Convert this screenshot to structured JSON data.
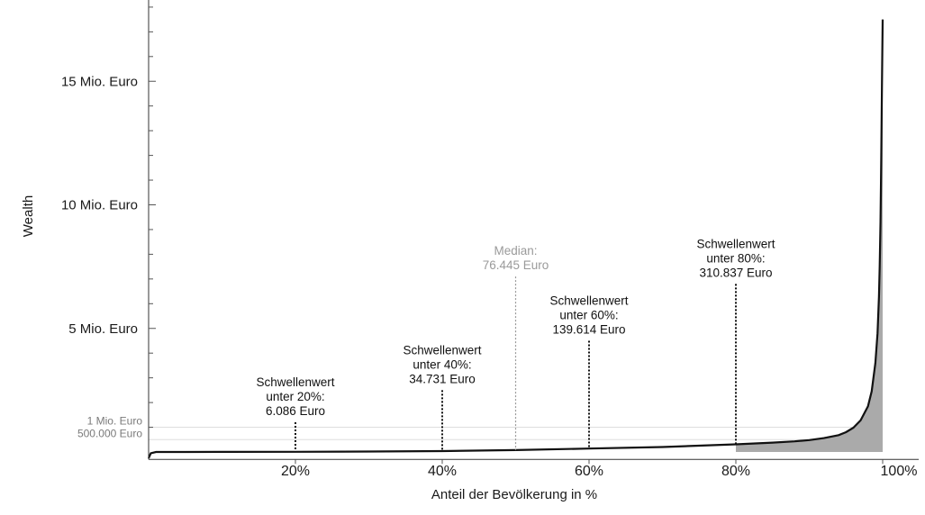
{
  "chart_data": {
    "type": "area",
    "xlabel": "Anteil der Bevölkerung in %",
    "ylabel": "Wealth",
    "xlim": [
      0,
      100
    ],
    "ylim": [
      -0.3,
      18.5
    ],
    "y_unit": "Mio. Euro",
    "x_ticks": [
      {
        "value": 20,
        "label": "20%"
      },
      {
        "value": 40,
        "label": "40%"
      },
      {
        "value": 60,
        "label": "60%"
      },
      {
        "value": 80,
        "label": "80%"
      },
      {
        "value": 100,
        "label": "100%"
      }
    ],
    "y_ticks_major": [
      {
        "value": 5,
        "label": "5 Mio. Euro"
      },
      {
        "value": 10,
        "label": "10 Mio. Euro"
      },
      {
        "value": 15,
        "label": "15 Mio. Euro"
      }
    ],
    "y_ticks_minor": [
      {
        "value": 0.5,
        "label": "500.000 Euro"
      },
      {
        "value": 1,
        "label": "1 Mio. Euro"
      }
    ],
    "series": [
      {
        "x": [
          0,
          0.3,
          1,
          5,
          10,
          20,
          30,
          40,
          50,
          60,
          70,
          80,
          85,
          88,
          90,
          92,
          94,
          95,
          96,
          97,
          98,
          98.5,
          99,
          99.3,
          99.5,
          99.6,
          99.7,
          99.8,
          99.9,
          100
        ],
        "y": [
          -0.25,
          -0.05,
          0.0,
          0.0,
          0.002,
          0.006,
          0.018,
          0.035,
          0.076,
          0.14,
          0.2,
          0.31,
          0.38,
          0.43,
          0.48,
          0.56,
          0.68,
          0.8,
          0.98,
          1.28,
          1.85,
          2.45,
          3.6,
          4.8,
          6.3,
          7.5,
          9.3,
          11.8,
          14.8,
          17.5
        ]
      }
    ],
    "annotations": [
      {
        "x": 20,
        "value": 0.006086,
        "top": 1.2,
        "lines": [
          "Schwellenwert",
          "unter 20%:",
          "6.086 Euro"
        ],
        "style": "dark"
      },
      {
        "x": 40,
        "value": 0.034731,
        "top": 2.5,
        "lines": [
          "Schwellenwert",
          "unter 40%:",
          "34.731 Euro"
        ],
        "style": "dark"
      },
      {
        "x": 50,
        "value": 0.076445,
        "top": 7.1,
        "lines": [
          "Median:",
          "76.445 Euro"
        ],
        "style": "grey"
      },
      {
        "x": 60,
        "value": 0.139614,
        "top": 4.5,
        "lines": [
          "Schwellenwert",
          "unter 60%:",
          "139.614 Euro"
        ],
        "style": "dark"
      },
      {
        "x": 80,
        "value": 0.310837,
        "top": 6.8,
        "lines": [
          "Schwellenwert",
          "unter 80%:",
          "310.837 Euro"
        ],
        "style": "dark"
      }
    ],
    "grid": false,
    "legend": "none",
    "colors": {
      "line": "#111111",
      "fill": "#aaaaaa",
      "median": "#9a9a9a",
      "guide": "#dddddd"
    }
  }
}
